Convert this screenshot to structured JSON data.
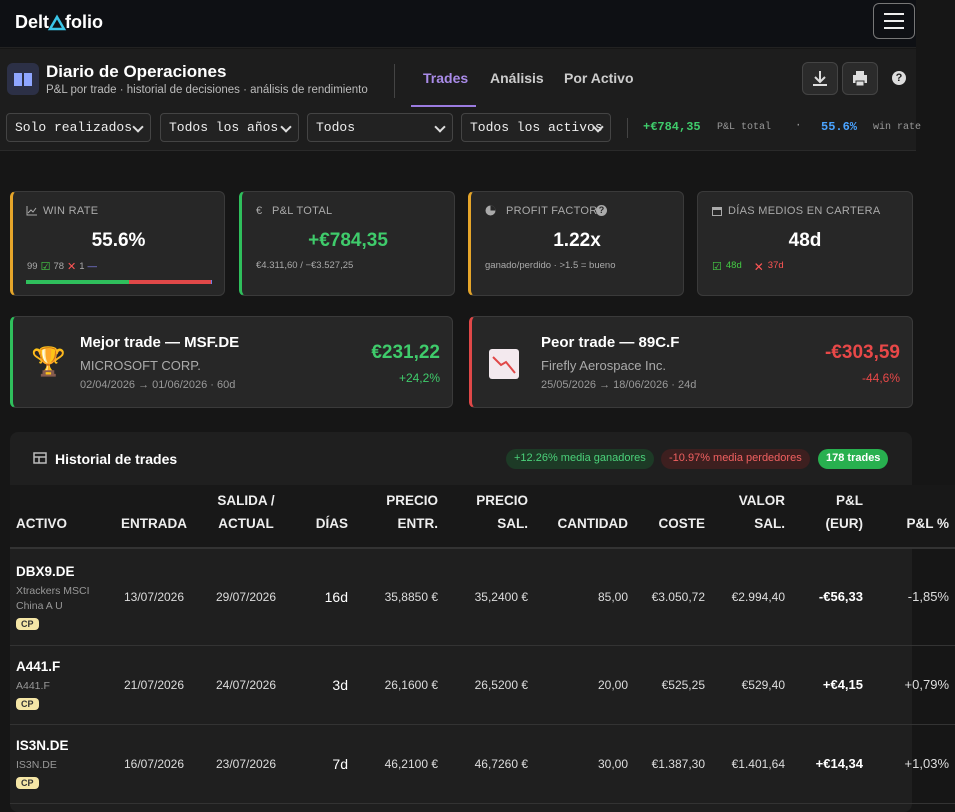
{
  "nav": {
    "logo_left": "Delt",
    "logo_right": "folio"
  },
  "header": {
    "title": "Diario de Operaciones",
    "subtitle": "P&L por trade · historial de decisiones · análisis de rendimiento",
    "tabs": [
      "Trades",
      "Análisis",
      "Por Activo"
    ],
    "help": "?"
  },
  "filters": {
    "selects": [
      "Solo realizados",
      "Todos los años",
      "Todos",
      "Todos los activos"
    ],
    "summary": {
      "pnl": "+€784,35",
      "pnl_label": "P&L total",
      "separator": "·",
      "win_rate": "55.6%",
      "win_label": "win rate"
    }
  },
  "cards": [
    {
      "label": "WIN RATE",
      "value": "55.6%",
      "wins": 99,
      "losses": 78,
      "neutral": 1
    },
    {
      "label": "P&L TOTAL",
      "value": "+€784,35",
      "detail": "€4.311,60 / −€3.527,25"
    },
    {
      "label": "PROFIT FACTOR",
      "help": "?",
      "value": "1.22x",
      "detail": "ganado/perdido · >1.5 = bueno"
    },
    {
      "label": "DÍAS MEDIOS EN CARTERA",
      "value": "48d",
      "win_days": "48d",
      "loss_days": "37d"
    }
  ],
  "best": {
    "title": "Mejor trade — MSF.DE",
    "name": "MICROSOFT CORP.",
    "dates": "02/04/2026 → 01/06/2026 · 60d",
    "amount": "€231,22",
    "pct": "+24,2%"
  },
  "worst": {
    "title": "Peor trade — 89C.F",
    "name": "Firefly Aerospace Inc.",
    "dates": "25/05/2026 → 18/06/2026 · 24d",
    "amount": "-€303,59",
    "pct": "-44,6%"
  },
  "history": {
    "title": "Historial de trades",
    "badges": [
      "+12.26% media ganadores",
      "-10.97% media perdedores",
      "178 trades"
    ],
    "columns": [
      "ACTIVO",
      "ENTRADA",
      "SALIDA / ACTUAL",
      "DÍAS",
      "PRECIO ENTR.",
      "PRECIO SAL.",
      "CANTIDAD",
      "COSTE",
      "VALOR SAL.",
      "P&L (EUR)",
      "P&L %"
    ],
    "rows": [
      {
        "asset": "DBX9.DE",
        "name": "Xtrackers MSCI China A U",
        "tag": "CP",
        "cells": [
          "13/07/2026",
          "29/07/2026",
          "16d",
          "35,8850 €",
          "35,2400 €",
          "85,00",
          "€3.050,72",
          "€2.994,40",
          "-€56,33",
          "-1,85%"
        ]
      },
      {
        "asset": "A441.F",
        "name": "A441.F",
        "tag": "CP",
        "cells": [
          "21/07/2026",
          "24/07/2026",
          "3d",
          "26,1600 €",
          "26,5200 €",
          "20,00",
          "€525,25",
          "€529,40",
          "+€4,15",
          "+0,79%"
        ]
      },
      {
        "asset": "IS3N.DE",
        "name": "IS3N.DE",
        "tag": "CP",
        "cells": [
          "16/07/2026",
          "23/07/2026",
          "7d",
          "46,2100 €",
          "46,7260 €",
          "30,00",
          "€1.387,30",
          "€1.401,64",
          "+€14,34",
          "+1,03%"
        ]
      }
    ]
  }
}
